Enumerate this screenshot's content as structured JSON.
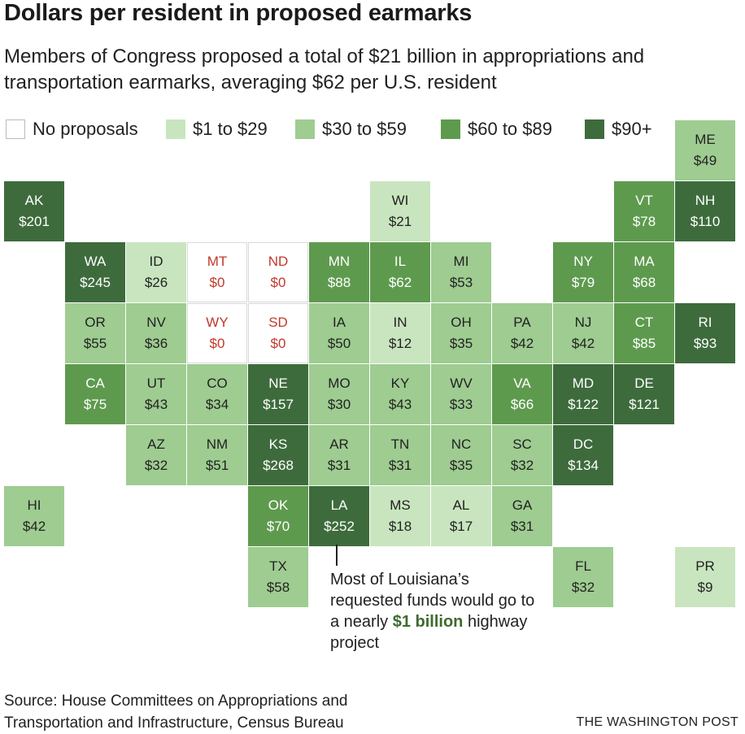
{
  "title": "Dollars per resident in proposed earmarks",
  "subtitle": "Members of Congress proposed a total of $21 billion in appropriations and transportation earmarks, averaging $62 per U.S. resident",
  "legend": [
    {
      "label": "No proposals",
      "color": "#ffffff",
      "border": "#bbbbbb"
    },
    {
      "label": "$1 to $29",
      "color": "#c9e5bf"
    },
    {
      "label": "$30 to $59",
      "color": "#9ecc91"
    },
    {
      "label": "$60 to $89",
      "color": "#5e9a4e"
    },
    {
      "label": "$90+",
      "color": "#3e6b3c"
    }
  ],
  "colors": {
    "none": "#ffffff",
    "b1": "#c9e5bf",
    "b2": "#9ecc91",
    "b3": "#5e9a4e",
    "b4": "#3e6b3c",
    "zero_text": "#c0392b",
    "dark_text": "#ffffff",
    "light_text": "#222222"
  },
  "states": [
    {
      "abbr": "ME",
      "label": "$49",
      "value": 49,
      "row": 0,
      "col": 11
    },
    {
      "abbr": "AK",
      "label": "$201",
      "value": 201,
      "row": 1,
      "col": 0
    },
    {
      "abbr": "WI",
      "label": "$21",
      "value": 21,
      "row": 1,
      "col": 6
    },
    {
      "abbr": "VT",
      "label": "$78",
      "value": 78,
      "row": 1,
      "col": 10
    },
    {
      "abbr": "NH",
      "label": "$110",
      "value": 110,
      "row": 1,
      "col": 11
    },
    {
      "abbr": "WA",
      "label": "$245",
      "value": 245,
      "row": 2,
      "col": 1
    },
    {
      "abbr": "ID",
      "label": "$26",
      "value": 26,
      "row": 2,
      "col": 2
    },
    {
      "abbr": "MT",
      "label": "$0",
      "value": 0,
      "row": 2,
      "col": 3
    },
    {
      "abbr": "ND",
      "label": "$0",
      "value": 0,
      "row": 2,
      "col": 4
    },
    {
      "abbr": "MN",
      "label": "$88",
      "value": 88,
      "row": 2,
      "col": 5
    },
    {
      "abbr": "IL",
      "label": "$62",
      "value": 62,
      "row": 2,
      "col": 6
    },
    {
      "abbr": "MI",
      "label": "$53",
      "value": 53,
      "row": 2,
      "col": 7
    },
    {
      "abbr": "NY",
      "label": "$79",
      "value": 79,
      "row": 2,
      "col": 9
    },
    {
      "abbr": "MA",
      "label": "$68",
      "value": 68,
      "row": 2,
      "col": 10
    },
    {
      "abbr": "OR",
      "label": "$55",
      "value": 55,
      "row": 3,
      "col": 1
    },
    {
      "abbr": "NV",
      "label": "$36",
      "value": 36,
      "row": 3,
      "col": 2
    },
    {
      "abbr": "WY",
      "label": "$0",
      "value": 0,
      "row": 3,
      "col": 3
    },
    {
      "abbr": "SD",
      "label": "$0",
      "value": 0,
      "row": 3,
      "col": 4
    },
    {
      "abbr": "IA",
      "label": "$50",
      "value": 50,
      "row": 3,
      "col": 5
    },
    {
      "abbr": "IN",
      "label": "$12",
      "value": 12,
      "row": 3,
      "col": 6
    },
    {
      "abbr": "OH",
      "label": "$35",
      "value": 35,
      "row": 3,
      "col": 7
    },
    {
      "abbr": "PA",
      "label": "$42",
      "value": 42,
      "row": 3,
      "col": 8
    },
    {
      "abbr": "NJ",
      "label": "$42",
      "value": 42,
      "row": 3,
      "col": 9
    },
    {
      "abbr": "CT",
      "label": "$85",
      "value": 85,
      "row": 3,
      "col": 10
    },
    {
      "abbr": "RI",
      "label": "$93",
      "value": 93,
      "row": 3,
      "col": 11
    },
    {
      "abbr": "CA",
      "label": "$75",
      "value": 75,
      "row": 4,
      "col": 1
    },
    {
      "abbr": "UT",
      "label": "$43",
      "value": 43,
      "row": 4,
      "col": 2
    },
    {
      "abbr": "CO",
      "label": "$34",
      "value": 34,
      "row": 4,
      "col": 3
    },
    {
      "abbr": "NE",
      "label": "$157",
      "value": 157,
      "row": 4,
      "col": 4
    },
    {
      "abbr": "MO",
      "label": "$30",
      "value": 30,
      "row": 4,
      "col": 5
    },
    {
      "abbr": "KY",
      "label": "$43",
      "value": 43,
      "row": 4,
      "col": 6
    },
    {
      "abbr": "WV",
      "label": "$33",
      "value": 33,
      "row": 4,
      "col": 7
    },
    {
      "abbr": "VA",
      "label": "$66",
      "value": 66,
      "row": 4,
      "col": 8
    },
    {
      "abbr": "MD",
      "label": "$122",
      "value": 122,
      "row": 4,
      "col": 9
    },
    {
      "abbr": "DE",
      "label": "$121",
      "value": 121,
      "row": 4,
      "col": 10
    },
    {
      "abbr": "AZ",
      "label": "$32",
      "value": 32,
      "row": 5,
      "col": 2
    },
    {
      "abbr": "NM",
      "label": "$51",
      "value": 51,
      "row": 5,
      "col": 3
    },
    {
      "abbr": "KS",
      "label": "$268",
      "value": 268,
      "row": 5,
      "col": 4
    },
    {
      "abbr": "AR",
      "label": "$31",
      "value": 31,
      "row": 5,
      "col": 5
    },
    {
      "abbr": "TN",
      "label": "$31",
      "value": 31,
      "row": 5,
      "col": 6
    },
    {
      "abbr": "NC",
      "label": "$35",
      "value": 35,
      "row": 5,
      "col": 7
    },
    {
      "abbr": "SC",
      "label": "$32",
      "value": 32,
      "row": 5,
      "col": 8
    },
    {
      "abbr": "DC",
      "label": "$134",
      "value": 134,
      "row": 5,
      "col": 9
    },
    {
      "abbr": "HI",
      "label": "$42",
      "value": 42,
      "row": 6,
      "col": 0
    },
    {
      "abbr": "OK",
      "label": "$70",
      "value": 70,
      "row": 6,
      "col": 4
    },
    {
      "abbr": "LA",
      "label": "$252",
      "value": 252,
      "row": 6,
      "col": 5
    },
    {
      "abbr": "MS",
      "label": "$18",
      "value": 18,
      "row": 6,
      "col": 6
    },
    {
      "abbr": "AL",
      "label": "$17",
      "value": 17,
      "row": 6,
      "col": 7
    },
    {
      "abbr": "GA",
      "label": "$31",
      "value": 31,
      "row": 6,
      "col": 8
    },
    {
      "abbr": "TX",
      "label": "$58",
      "value": 58,
      "row": 7,
      "col": 4
    },
    {
      "abbr": "FL",
      "label": "$32",
      "value": 32,
      "row": 7,
      "col": 9
    },
    {
      "abbr": "PR",
      "label": "$9",
      "value": 9,
      "row": 7,
      "col": 11
    }
  ],
  "annotation": {
    "pre": "Most of Louisiana’s requested funds would go to a nearly ",
    "emphasis": "$1 billion",
    "post": " highway project"
  },
  "source": "Source: House Committees on Appropriations and Transportation and Infrastructure, Census Bureau",
  "credit": "THE WASHINGTON POST"
}
